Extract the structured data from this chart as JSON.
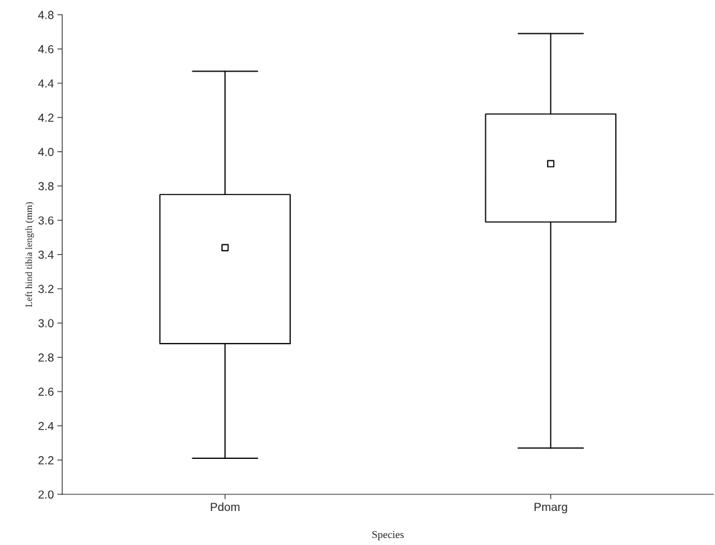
{
  "chart_data": {
    "type": "box",
    "xlabel": "Species",
    "ylabel": "Left hind tibia length (mm)",
    "categories": [
      "Pdom",
      "Pmarg"
    ],
    "boxes": [
      {
        "low": 2.21,
        "q1": 2.88,
        "median": 3.44,
        "q3": 3.75,
        "high": 4.47
      },
      {
        "low": 2.27,
        "q1": 3.59,
        "median": 3.93,
        "q3": 4.22,
        "high": 4.69
      }
    ],
    "color": "#000000",
    "marker": "square",
    "grid": false,
    "legend": false,
    "ylim": [
      2.0,
      4.8
    ],
    "yticks": [
      {
        "value": 2.0,
        "label": "2.0"
      },
      {
        "value": 2.2,
        "label": "2.2"
      },
      {
        "value": 2.4,
        "label": "2.4"
      },
      {
        "value": 2.6,
        "label": "2.6"
      },
      {
        "value": 2.8,
        "label": "2.8"
      },
      {
        "value": 3.0,
        "label": "3.0"
      },
      {
        "value": 3.2,
        "label": "3.2"
      },
      {
        "value": 3.4,
        "label": "3.4"
      },
      {
        "value": 3.6,
        "label": "3.6"
      },
      {
        "value": 3.8,
        "label": "3.8"
      },
      {
        "value": 4.0,
        "label": "4.0"
      },
      {
        "value": 4.2,
        "label": "4.2"
      },
      {
        "value": 4.4,
        "label": "4.4"
      },
      {
        "value": 4.6,
        "label": "4.6"
      },
      {
        "value": 4.8,
        "label": "4.8"
      }
    ]
  }
}
